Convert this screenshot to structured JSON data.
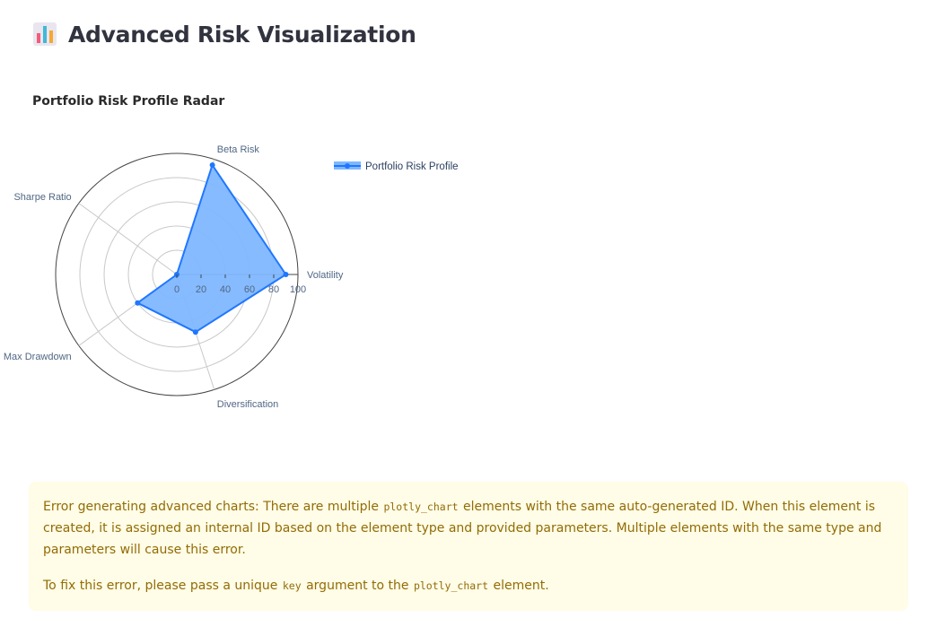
{
  "header": {
    "title": "Advanced Risk Visualization",
    "icon": "bar-chart-icon"
  },
  "chart_data": {
    "type": "radar",
    "title": "Portfolio Risk Profile Radar",
    "categories": [
      "Volatility",
      "Beta Risk",
      "Sharpe Ratio",
      "Max Drawdown",
      "Diversification"
    ],
    "series": [
      {
        "name": "Portfolio Risk Profile",
        "values": [
          90,
          95,
          0,
          40,
          50
        ],
        "color": "#1f77ff",
        "fill": "#7fb7ff"
      }
    ],
    "radial_range": [
      0,
      100
    ],
    "radial_ticks": [
      "0",
      "20",
      "40",
      "60",
      "80",
      "100"
    ],
    "legend_position": "top-right",
    "grid": true
  },
  "alert": {
    "type": "warning",
    "line1_prefix": "Error generating advanced charts: There are multiple ",
    "line1_code": "plotly_chart",
    "line1_suffix": " elements with the same auto-generated ID. When this element is created, it is assigned an internal ID based on the element type and provided parameters. Multiple elements with the same type and parameters will cause this error.",
    "line2_prefix": "To fix this error, please pass a unique ",
    "line2_code": "key",
    "line2_mid": " argument to the ",
    "line2_code2": "plotly_chart",
    "line2_suffix": " element.",
    "text_color": "#926c05",
    "background": "#fffce7"
  }
}
